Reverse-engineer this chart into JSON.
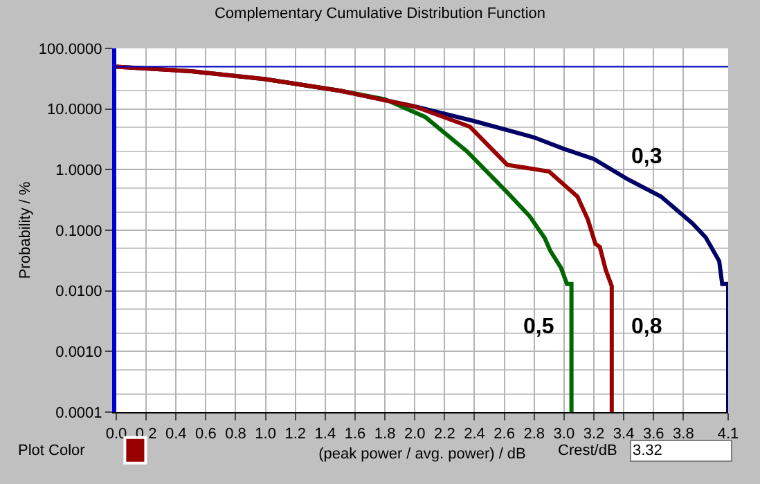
{
  "chart_data": {
    "type": "line",
    "title": "Complementary Cumulative Distribution Function",
    "xlabel": "(peak power / avg. power) / dB",
    "ylabel": "Probability / %",
    "xlim": [
      0,
      4.1
    ],
    "ylim": [
      0.0001,
      100
    ],
    "log": "y",
    "grid": true,
    "marker": "none",
    "line_style": "solid",
    "xticks": [
      {
        "value": 0,
        "label": "0.0"
      },
      {
        "value": 0.2,
        "label": "0.2"
      },
      {
        "value": 0.4,
        "label": "0.4"
      },
      {
        "value": 0.6,
        "label": "0.6"
      },
      {
        "value": 0.8,
        "label": "0.8"
      },
      {
        "value": 1,
        "label": "1.0"
      },
      {
        "value": 1.2,
        "label": "1.2"
      },
      {
        "value": 1.4,
        "label": "1.4"
      },
      {
        "value": 1.6,
        "label": "1.6"
      },
      {
        "value": 1.8,
        "label": "1.8"
      },
      {
        "value": 2,
        "label": "2.0"
      },
      {
        "value": 2.2,
        "label": "2.2"
      },
      {
        "value": 2.4,
        "label": "2.4"
      },
      {
        "value": 2.6,
        "label": "2.6"
      },
      {
        "value": 2.8,
        "label": "2.8"
      },
      {
        "value": 3,
        "label": "3.0"
      },
      {
        "value": 3.2,
        "label": "3.2"
      },
      {
        "value": 3.4,
        "label": "3.4"
      },
      {
        "value": 3.6,
        "label": "3.6"
      },
      {
        "value": 3.8,
        "label": "3.8"
      },
      {
        "value": 4.1,
        "label": "4.1"
      }
    ],
    "yticks": [
      {
        "value": 100,
        "label": "100.0000"
      },
      {
        "value": 10,
        "label": "10.0000"
      },
      {
        "value": 1,
        "label": "1.0000"
      },
      {
        "value": 0.1,
        "label": "0.1000"
      },
      {
        "value": 0.01,
        "label": "0.0100"
      },
      {
        "value": 0.001,
        "label": "0.0010"
      },
      {
        "value": 0.0001,
        "label": "0.0001"
      }
    ],
    "ref_lines": [
      {
        "axis": "y",
        "value": 50,
        "color": "#0000cc"
      }
    ],
    "series": [
      {
        "color": "#000066",
        "x": [
          0,
          0.5,
          1.0,
          1.5,
          2.0,
          2.4,
          2.8,
          3.0,
          3.2,
          3.42,
          3.65,
          3.86,
          3.95,
          4.04,
          4.06,
          4.1,
          4.1
        ],
        "values": [
          50,
          42,
          31,
          20,
          11,
          6.3,
          3.4,
          2.2,
          1.5,
          0.71,
          0.36,
          0.13,
          0.076,
          0.031,
          0.013,
          0.013,
          0.0001
        ]
      },
      {
        "color": "#006600",
        "x": [
          1.0,
          1.5,
          1.8,
          2.07,
          2.35,
          2.62,
          2.77,
          2.87,
          2.91,
          2.98,
          3.02,
          3.05,
          3.05
        ],
        "values": [
          31,
          20,
          14.5,
          7.4,
          2,
          0.42,
          0.17,
          0.075,
          0.045,
          0.024,
          0.013,
          0.013,
          0.0001
        ]
      },
      {
        "color": "#990000",
        "x": [
          0,
          0.5,
          1.0,
          1.5,
          2.0,
          2.37,
          2.62,
          2.9,
          3.09,
          3.16,
          3.21,
          3.24,
          3.28,
          3.32,
          3.32
        ],
        "values": [
          50,
          42,
          31,
          20,
          11,
          5.1,
          1.2,
          0.93,
          0.36,
          0.15,
          0.06,
          0.053,
          0.022,
          0.012,
          0.0001
        ]
      }
    ],
    "annotations": [
      "0,3",
      "0,5",
      "0,8",
      "Plot Color",
      "Crest/dB",
      "3.32"
    ]
  }
}
